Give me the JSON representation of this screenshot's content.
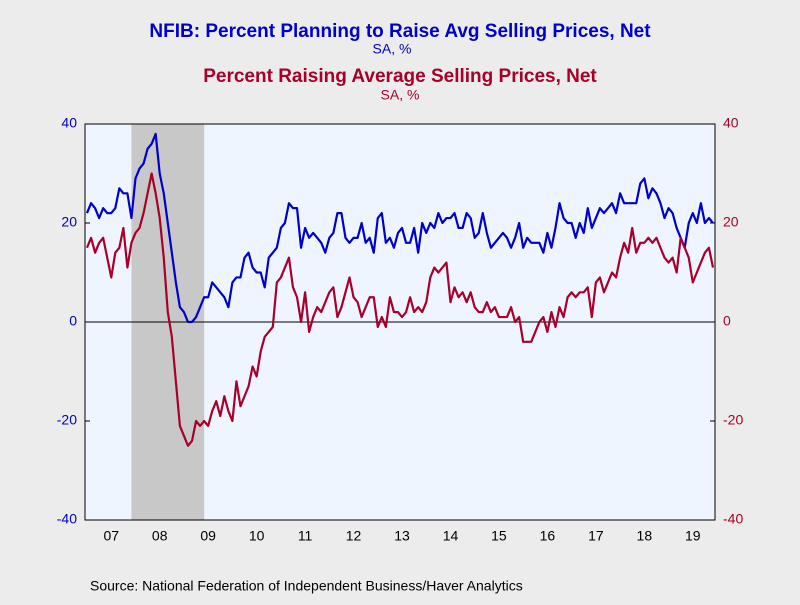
{
  "chart_data": {
    "type": "line",
    "source": "Source:  National Federation of Independent Business/Haver Analytics",
    "categories": [
      null,
      null,
      null,
      null,
      null,
      null,
      "07",
      null,
      null,
      null,
      null,
      null,
      null,
      null,
      null,
      null,
      null,
      null,
      "08",
      null,
      null,
      null,
      null,
      null,
      null,
      null,
      null,
      null,
      null,
      null,
      "09",
      null,
      null,
      null,
      null,
      null,
      null,
      null,
      null,
      null,
      null,
      null,
      "10",
      null,
      null,
      null,
      null,
      null,
      null,
      null,
      null,
      null,
      null,
      null,
      "11",
      null,
      null,
      null,
      null,
      null,
      null,
      null,
      null,
      null,
      null,
      null,
      "12",
      null,
      null,
      null,
      null,
      null,
      null,
      null,
      null,
      null,
      null,
      null,
      "13",
      null,
      null,
      null,
      null,
      null,
      null,
      null,
      null,
      null,
      null,
      null,
      "14",
      null,
      null,
      null,
      null,
      null,
      null,
      null,
      null,
      null,
      null,
      null,
      "15",
      null,
      null,
      null,
      null,
      null,
      null,
      null,
      null,
      null,
      null,
      null,
      "16",
      null,
      null,
      null,
      null,
      null,
      null,
      null,
      null,
      null,
      null,
      null,
      "17",
      null,
      null,
      null,
      null,
      null,
      null,
      null,
      null,
      null,
      null,
      null,
      "18",
      null,
      null,
      null,
      null,
      null,
      null,
      null,
      null,
      null,
      null,
      null,
      "19",
      null,
      null,
      null,
      null,
      null
    ],
    "shaded_range": [
      11,
      29
    ],
    "ylim": [
      -40,
      40
    ],
    "yticks": [
      -40,
      -20,
      0,
      20,
      40
    ],
    "y2lim": [
      -40,
      40
    ],
    "y2ticks": [
      -40,
      -20,
      0,
      20,
      40
    ],
    "series": [
      {
        "name": "NFIB: Percent Planning to Raise Avg Selling Prices, Net",
        "subtitle": "SA, %",
        "color": "#0000cc",
        "values": [
          22,
          24,
          23,
          21,
          23,
          22,
          22,
          23,
          27,
          26,
          26,
          21,
          29,
          31,
          32,
          35,
          36,
          38,
          30,
          26,
          20,
          14,
          8,
          3,
          2,
          0,
          0,
          1,
          3,
          5,
          5,
          8,
          7,
          6,
          5,
          3,
          8,
          9,
          9,
          13,
          14,
          11,
          10,
          10,
          7,
          13,
          14,
          15,
          19,
          20,
          24,
          23,
          23,
          15,
          19,
          17,
          18,
          17,
          16,
          14,
          17,
          18,
          22,
          22,
          17,
          16,
          17,
          17,
          20,
          16,
          17,
          14,
          21,
          22,
          16,
          17,
          15,
          18,
          19,
          16,
          16,
          19,
          14,
          20,
          18,
          20,
          19,
          22,
          20,
          21,
          21,
          22,
          19,
          19,
          22,
          21,
          17,
          18,
          22,
          18,
          15,
          16,
          17,
          18,
          17,
          15,
          17,
          20,
          15,
          17,
          16,
          16,
          16,
          14,
          18,
          15,
          19,
          24,
          21,
          20,
          20,
          17,
          20,
          18,
          23,
          19,
          21,
          23,
          22,
          23,
          24,
          22,
          26,
          24,
          24,
          24,
          24,
          28,
          29,
          25,
          27,
          26,
          24,
          21,
          23,
          22,
          19,
          17,
          15,
          20,
          22,
          20,
          24,
          20,
          21,
          20
        ]
      },
      {
        "name": "Percent Raising Average Selling Prices, Net",
        "subtitle": "SA, %",
        "color": "#a8002a",
        "axis": "y2",
        "values": [
          15,
          17,
          14,
          16,
          17,
          13,
          9,
          14,
          15,
          19,
          11,
          16,
          18,
          19,
          22,
          26,
          30,
          26,
          21,
          13,
          2,
          -3,
          -12,
          -21,
          -23,
          -25,
          -24,
          -20,
          -21,
          -20,
          -21,
          -18,
          -16,
          -19,
          -15,
          -18,
          -20,
          -12,
          -17,
          -15,
          -13,
          -9,
          -11,
          -6,
          -3,
          -2,
          -1,
          8,
          9,
          11,
          13,
          7,
          5,
          0,
          6,
          -2,
          1,
          3,
          2,
          4,
          6,
          7,
          1,
          3,
          6,
          9,
          5,
          4,
          1,
          3,
          5,
          5,
          -1,
          1,
          -1,
          5,
          2,
          2,
          1,
          2,
          5,
          2,
          3,
          2,
          4,
          9,
          11,
          10,
          11,
          12,
          4,
          7,
          5,
          6,
          4,
          6,
          3,
          2,
          2,
          4,
          2,
          3,
          1,
          1,
          1,
          3,
          0,
          1,
          -4,
          -4,
          -4,
          -2,
          0,
          1,
          -2,
          2,
          -1,
          3,
          1,
          5,
          6,
          5,
          6,
          6,
          7,
          1,
          8,
          9,
          6,
          8,
          10,
          9,
          13,
          16,
          14,
          19,
          14,
          16,
          16,
          17,
          16,
          17,
          15,
          13,
          12,
          13,
          10,
          17,
          15,
          13,
          8,
          10,
          12,
          14,
          15,
          11
        ]
      }
    ]
  }
}
